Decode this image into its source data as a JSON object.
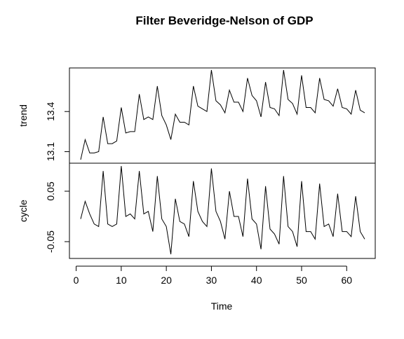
{
  "chart_data": {
    "type": "line",
    "title": "Filter Beveridge-Nelson of GDP",
    "xlabel": "Time",
    "x_ticks": [
      0,
      10,
      20,
      30,
      40,
      50,
      60
    ],
    "xlim": [
      1,
      64
    ],
    "panels": [
      {
        "name": "trend",
        "ylabel": "trend",
        "y_ticks": [
          13.1,
          13.4
        ],
        "ylim": [
          13.04,
          13.71
        ],
        "x": [
          1,
          2,
          3,
          4,
          5,
          6,
          7,
          8,
          9,
          10,
          11,
          12,
          13,
          14,
          15,
          16,
          17,
          18,
          19,
          20,
          21,
          22,
          23,
          24,
          25,
          26,
          27,
          28,
          29,
          30,
          31,
          32,
          33,
          34,
          35,
          36,
          37,
          38,
          39,
          40,
          41,
          42,
          43,
          44,
          45,
          46,
          47,
          48,
          49,
          50,
          51,
          52,
          53,
          54,
          55,
          56,
          57,
          58,
          59,
          60,
          61,
          62,
          63,
          64
        ],
        "values": [
          13.04,
          13.19,
          13.09,
          13.09,
          13.1,
          13.36,
          13.16,
          13.16,
          13.18,
          13.43,
          13.24,
          13.25,
          13.25,
          13.53,
          13.34,
          13.36,
          13.34,
          13.59,
          13.37,
          13.3,
          13.19,
          13.38,
          13.32,
          13.32,
          13.3,
          13.59,
          13.44,
          13.42,
          13.4,
          13.71,
          13.48,
          13.45,
          13.39,
          13.56,
          13.47,
          13.47,
          13.4,
          13.65,
          13.52,
          13.48,
          13.36,
          13.62,
          13.43,
          13.42,
          13.37,
          13.71,
          13.49,
          13.46,
          13.38,
          13.67,
          13.43,
          13.43,
          13.39,
          13.65,
          13.49,
          13.48,
          13.44,
          13.57,
          13.43,
          13.42,
          13.38,
          13.56,
          13.41,
          13.39
        ]
      },
      {
        "name": "cycle",
        "ylabel": "cycle",
        "y_ticks": [
          -0.05,
          0.05
        ],
        "ylim": [
          -0.075,
          0.1
        ],
        "x": [
          1,
          2,
          3,
          4,
          5,
          6,
          7,
          8,
          9,
          10,
          11,
          12,
          13,
          14,
          15,
          16,
          17,
          18,
          19,
          20,
          21,
          22,
          23,
          24,
          25,
          26,
          27,
          28,
          29,
          30,
          31,
          32,
          33,
          34,
          35,
          36,
          37,
          38,
          39,
          40,
          41,
          42,
          43,
          44,
          45,
          46,
          47,
          48,
          49,
          50,
          51,
          52,
          53,
          54,
          55,
          56,
          57,
          58,
          59,
          60,
          61,
          62,
          63,
          64
        ],
        "values": [
          -0.005,
          0.03,
          0.005,
          -0.015,
          -0.02,
          0.09,
          -0.015,
          -0.02,
          -0.015,
          0.1,
          0.0,
          0.005,
          -0.005,
          0.09,
          0.005,
          0.01,
          -0.03,
          0.08,
          -0.005,
          -0.02,
          -0.075,
          0.035,
          -0.01,
          -0.015,
          -0.04,
          0.07,
          0.01,
          -0.01,
          -0.02,
          0.095,
          0.01,
          -0.01,
          -0.045,
          0.05,
          0.0,
          0.0,
          -0.04,
          0.075,
          -0.005,
          -0.015,
          -0.065,
          0.06,
          -0.025,
          -0.035,
          -0.055,
          0.08,
          -0.02,
          -0.03,
          -0.06,
          0.07,
          -0.03,
          -0.03,
          -0.045,
          0.065,
          -0.02,
          -0.015,
          -0.04,
          0.045,
          -0.03,
          -0.03,
          -0.04,
          0.04,
          -0.03,
          -0.045
        ]
      }
    ],
    "grid": false,
    "legend": "none"
  }
}
